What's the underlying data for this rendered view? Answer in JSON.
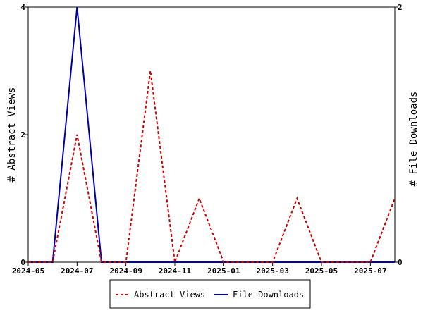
{
  "chart_data": {
    "type": "line",
    "x": [
      "2024-05",
      "2024-06",
      "2024-07",
      "2024-08",
      "2024-09",
      "2024-10",
      "2024-11",
      "2024-12",
      "2025-01",
      "2025-02",
      "2025-03",
      "2025-04",
      "2025-05",
      "2025-06",
      "2025-07",
      "2025-08"
    ],
    "series": [
      {
        "name": "Abstract Views",
        "axis": "left",
        "color": "#cc0000",
        "style": "dashed",
        "values": [
          0,
          0,
          2,
          0,
          0,
          3,
          0,
          1,
          0,
          0,
          0,
          1,
          0,
          0,
          0,
          1
        ]
      },
      {
        "name": "File Downloads",
        "axis": "right",
        "color": "#0000aa",
        "style": "solid",
        "values": [
          0,
          0,
          2,
          0,
          0,
          0,
          0,
          0,
          0,
          0,
          0,
          0,
          0,
          0,
          0,
          0
        ]
      }
    ],
    "xticks": [
      "2024-05",
      "2024-07",
      "2024-09",
      "2024-11",
      "2025-01",
      "2025-03",
      "2025-05",
      "2025-07"
    ],
    "ylabel_left": "# Abstract Views",
    "ylabel_right": "# File Downloads",
    "ylim_left": [
      0,
      4
    ],
    "ylim_right": [
      0,
      2
    ],
    "yticks_left": [
      0,
      2,
      4
    ],
    "yticks_right": [
      0,
      2
    ],
    "legend_position": "bottom-center",
    "grid": false
  }
}
